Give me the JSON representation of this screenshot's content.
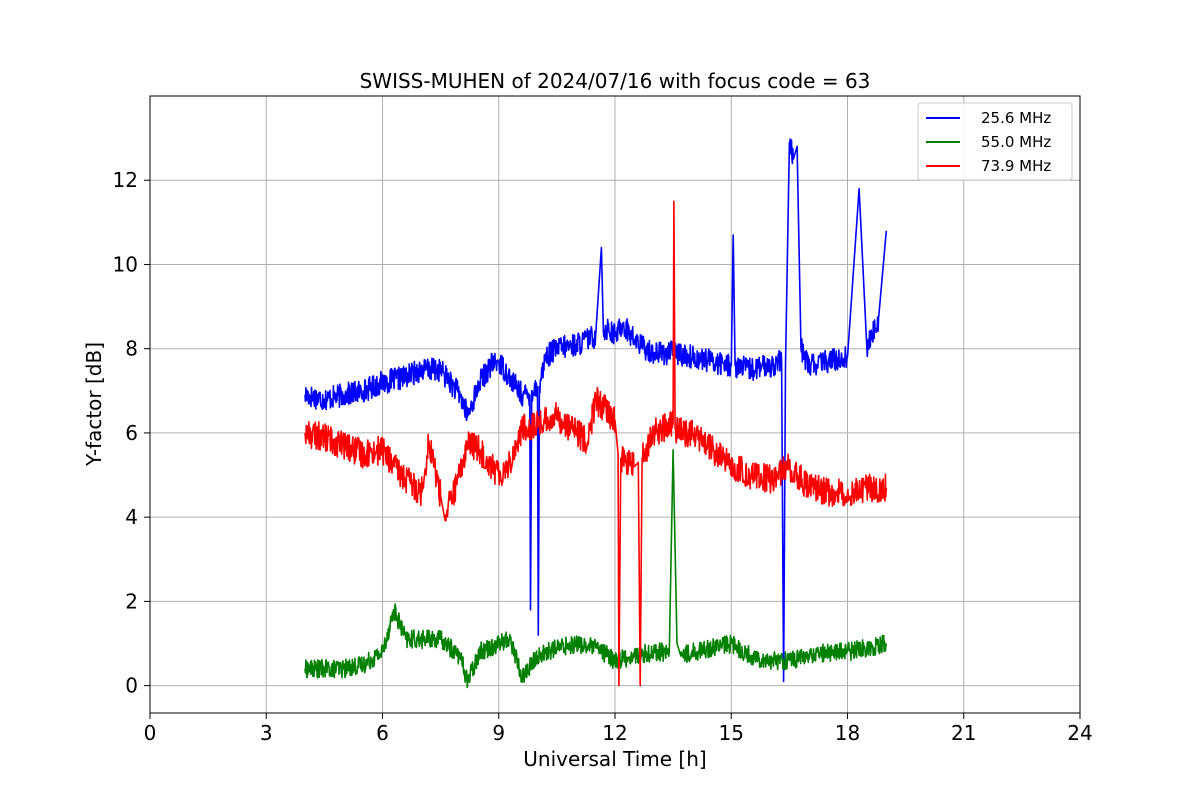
{
  "chart_data": {
    "type": "line",
    "title": "SWISS-MUHEN of 2024/07/16 with focus code = 63",
    "xlabel": "Universal Time [h]",
    "ylabel": "Y-factor [dB]",
    "xlim": [
      0,
      24
    ],
    "ylim": [
      -0.65,
      14
    ],
    "xticks": [
      0,
      3,
      6,
      9,
      12,
      15,
      18,
      21,
      24
    ],
    "xtick_labels": [
      "0",
      "3",
      "6",
      "9",
      "12",
      "15",
      "18",
      "21",
      "24"
    ],
    "yticks": [
      0,
      2,
      4,
      6,
      8,
      10,
      12
    ],
    "ytick_labels": [
      "0",
      "2",
      "4",
      "6",
      "8",
      "10",
      "12"
    ],
    "grid": true,
    "legend_position": "top-right",
    "series": [
      {
        "name": "25.6 MHz",
        "color": "#0000ff",
        "x": [
          4.0,
          4.5,
          5.0,
          5.5,
          6.0,
          6.5,
          7.0,
          7.5,
          8.0,
          8.2,
          8.5,
          8.8,
          9.0,
          9.3,
          9.6,
          9.8,
          9.82,
          9.85,
          10.0,
          10.02,
          10.05,
          10.2,
          10.5,
          11.0,
          11.5,
          11.65,
          11.7,
          11.8,
          12.0,
          12.2,
          12.5,
          12.8,
          13.0,
          13.5,
          14.0,
          14.5,
          15.0,
          15.05,
          15.1,
          15.5,
          16.0,
          16.3,
          16.35,
          16.4,
          16.5,
          16.6,
          16.7,
          16.8,
          17.0,
          17.5,
          18.0,
          18.3,
          18.5,
          18.8,
          19.0
        ],
        "y": [
          6.9,
          6.8,
          6.9,
          7.0,
          7.2,
          7.3,
          7.5,
          7.5,
          6.9,
          6.4,
          7.2,
          7.6,
          7.7,
          7.3,
          6.9,
          6.9,
          1.8,
          7.0,
          7.1,
          1.2,
          7.1,
          7.8,
          8.0,
          8.1,
          8.3,
          10.4,
          8.4,
          8.5,
          8.3,
          8.6,
          8.2,
          8.0,
          7.9,
          7.9,
          7.8,
          7.7,
          7.6,
          10.7,
          7.6,
          7.5,
          7.6,
          7.7,
          0.1,
          7.6,
          12.9,
          12.5,
          12.8,
          8.0,
          7.6,
          7.7,
          7.8,
          11.8,
          8.0,
          8.7,
          10.8
        ]
      },
      {
        "name": "55.0 MHz",
        "color": "#008000",
        "x": [
          4.0,
          4.5,
          5.0,
          5.5,
          6.0,
          6.3,
          6.6,
          7.0,
          7.5,
          8.0,
          8.2,
          8.5,
          9.0,
          9.3,
          9.6,
          10.0,
          10.5,
          11.0,
          11.5,
          12.0,
          12.5,
          13.0,
          13.4,
          13.5,
          13.6,
          13.7,
          14.0,
          14.5,
          15.0,
          15.5,
          16.0,
          16.5,
          17.0,
          17.5,
          18.0,
          18.5,
          19.0
        ],
        "y": [
          0.4,
          0.4,
          0.4,
          0.5,
          0.8,
          1.8,
          1.1,
          1.1,
          1.1,
          0.7,
          0.1,
          0.8,
          1.0,
          1.1,
          0.2,
          0.7,
          0.9,
          1.0,
          0.9,
          0.6,
          0.7,
          0.8,
          0.8,
          5.6,
          1.0,
          0.7,
          0.8,
          0.9,
          1.0,
          0.7,
          0.6,
          0.6,
          0.7,
          0.8,
          0.8,
          0.9,
          1.0
        ]
      },
      {
        "name": "73.9 MHz",
        "color": "#ff0000",
        "x": [
          4.0,
          4.5,
          5.0,
          5.5,
          6.0,
          6.3,
          6.6,
          7.0,
          7.2,
          7.5,
          7.6,
          8.0,
          8.2,
          8.5,
          9.0,
          9.3,
          9.6,
          10.0,
          10.5,
          11.0,
          11.3,
          11.5,
          12.0,
          12.08,
          12.1,
          12.15,
          12.5,
          12.6,
          12.65,
          12.7,
          13.0,
          13.5,
          13.52,
          13.55,
          13.8,
          14.0,
          14.5,
          15.0,
          15.5,
          16.0,
          16.5,
          17.0,
          17.5,
          18.0,
          18.5,
          19.0
        ],
        "y": [
          6.0,
          5.9,
          5.7,
          5.5,
          5.6,
          5.2,
          4.9,
          4.6,
          5.8,
          4.5,
          4.0,
          5.0,
          5.8,
          5.6,
          5.0,
          5.3,
          6.1,
          6.2,
          6.4,
          6.0,
          5.8,
          6.8,
          6.3,
          5.5,
          0.0,
          5.4,
          5.2,
          5.3,
          0.0,
          5.4,
          6.0,
          6.2,
          11.5,
          6.1,
          6.0,
          6.0,
          5.6,
          5.2,
          5.0,
          4.9,
          5.2,
          4.7,
          4.6,
          4.6,
          4.7,
          4.7
        ]
      }
    ]
  }
}
